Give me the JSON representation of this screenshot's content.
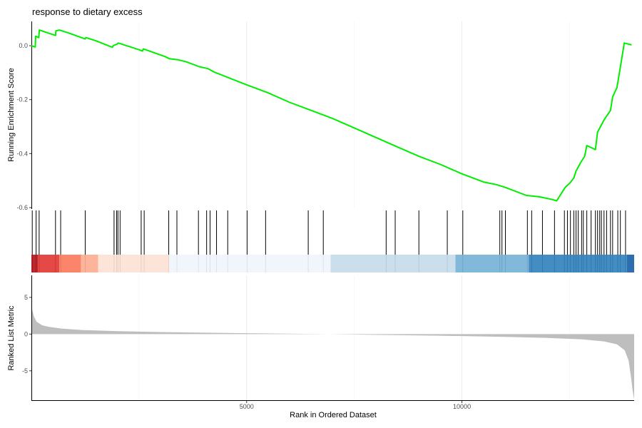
{
  "chart_data": {
    "type": "line",
    "title": "response to dietary excess",
    "xlabel": "Rank in Ordered Dataset",
    "xlim": [
      0,
      14000
    ],
    "x_ticks": [
      5000,
      10000
    ],
    "es_panel": {
      "ylabel": "Running Enrichment Score",
      "ylim": [
        -0.6,
        0.09
      ],
      "y_ticks": [
        0.0,
        -0.2,
        -0.4,
        -0.6
      ],
      "y_tick_labels": [
        "0.0",
        "-0.2",
        "-0.4",
        "-0.6"
      ],
      "line_color": "#00ee00",
      "points": [
        [
          0,
          0.0
        ],
        [
          90,
          -0.005
        ],
        [
          100,
          0.035
        ],
        [
          170,
          0.03
        ],
        [
          185,
          0.058
        ],
        [
          330,
          0.05
        ],
        [
          560,
          0.038
        ],
        [
          570,
          0.055
        ],
        [
          650,
          0.058
        ],
        [
          850,
          0.048
        ],
        [
          1250,
          0.025
        ],
        [
          1265,
          0.03
        ],
        [
          1500,
          0.018
        ],
        [
          1880,
          -0.006
        ],
        [
          1900,
          0.0
        ],
        [
          1990,
          0.006
        ],
        [
          2020,
          0.01
        ],
        [
          2500,
          -0.015
        ],
        [
          2580,
          -0.02
        ],
        [
          2600,
          -0.012
        ],
        [
          3100,
          -0.04
        ],
        [
          3200,
          -0.048
        ],
        [
          3400,
          -0.052
        ],
        [
          3600,
          -0.06
        ],
        [
          3900,
          -0.078
        ],
        [
          4100,
          -0.085
        ],
        [
          4250,
          -0.098
        ],
        [
          4600,
          -0.12
        ],
        [
          5000,
          -0.145
        ],
        [
          5500,
          -0.175
        ],
        [
          6000,
          -0.21
        ],
        [
          6500,
          -0.24
        ],
        [
          7000,
          -0.27
        ],
        [
          7500,
          -0.305
        ],
        [
          8000,
          -0.34
        ],
        [
          8500,
          -0.375
        ],
        [
          9000,
          -0.41
        ],
        [
          9500,
          -0.44
        ],
        [
          10000,
          -0.475
        ],
        [
          10500,
          -0.505
        ],
        [
          10800,
          -0.515
        ],
        [
          11000,
          -0.525
        ],
        [
          11500,
          -0.555
        ],
        [
          11800,
          -0.56
        ],
        [
          12100,
          -0.57
        ],
        [
          12200,
          -0.575
        ],
        [
          12300,
          -0.55
        ],
        [
          12400,
          -0.525
        ],
        [
          12500,
          -0.51
        ],
        [
          12600,
          -0.49
        ],
        [
          12650,
          -0.465
        ],
        [
          12750,
          -0.435
        ],
        [
          12850,
          -0.41
        ],
        [
          12900,
          -0.37
        ],
        [
          13100,
          -0.385
        ],
        [
          13150,
          -0.32
        ],
        [
          13300,
          -0.275
        ],
        [
          13450,
          -0.24
        ],
        [
          13500,
          -0.19
        ],
        [
          13600,
          -0.155
        ],
        [
          13700,
          -0.06
        ],
        [
          13770,
          0.01
        ],
        [
          13940,
          0.003
        ]
      ]
    },
    "gene_hits": [
      20,
      110,
      180,
      560,
      680,
      1250,
      1920,
      1980,
      2010,
      2060,
      2550,
      2620,
      3190,
      3380,
      3880,
      4070,
      4150,
      4300,
      4560,
      5010,
      5440,
      6430,
      6780,
      8240,
      8450,
      9000,
      9660,
      10020,
      10880,
      10930,
      11010,
      11520,
      11620,
      11870,
      12150,
      12380,
      12450,
      12520,
      12600,
      12650,
      12700,
      12780,
      12820,
      12900,
      13000,
      13100,
      13150,
      13200,
      13240,
      13300,
      13360,
      13450,
      13500,
      13620,
      13680,
      13800
    ],
    "color_bands": [
      {
        "from": 0,
        "to": 150,
        "color": "#b2171e"
      },
      {
        "from": 150,
        "to": 650,
        "color": "#e33a36"
      },
      {
        "from": 650,
        "to": 1150,
        "color": "#fb7b5d"
      },
      {
        "from": 1150,
        "to": 1550,
        "color": "#fcae93"
      },
      {
        "from": 1550,
        "to": 3200,
        "color": "#fde2d6"
      },
      {
        "from": 3200,
        "to": 6950,
        "color": "#f0f5fd"
      },
      {
        "from": 6950,
        "to": 9850,
        "color": "#c6dbea"
      },
      {
        "from": 9850,
        "to": 11550,
        "color": "#77b3d8"
      },
      {
        "from": 11550,
        "to": 13830,
        "color": "#3483be"
      },
      {
        "from": 13830,
        "to": 14000,
        "color": "#1a62a8"
      }
    ],
    "metric_panel": {
      "ylabel": "Ranked List Metric",
      "ylim": [
        -9,
        8
      ],
      "y_ticks": [
        5,
        0,
        -5
      ],
      "y_tick_labels": [
        "5",
        "0",
        "-5"
      ],
      "fill_color": "#bebebe",
      "profile": [
        [
          0,
          4.8
        ],
        [
          20,
          3.3
        ],
        [
          60,
          2.4
        ],
        [
          120,
          1.7
        ],
        [
          250,
          1.2
        ],
        [
          400,
          1.0
        ],
        [
          700,
          0.75
        ],
        [
          1200,
          0.55
        ],
        [
          2000,
          0.4
        ],
        [
          3000,
          0.28
        ],
        [
          4500,
          0.15
        ],
        [
          6000,
          0.06
        ],
        [
          6900,
          0.0
        ],
        [
          8000,
          -0.1
        ],
        [
          9500,
          -0.22
        ],
        [
          11000,
          -0.38
        ],
        [
          12000,
          -0.52
        ],
        [
          12800,
          -0.72
        ],
        [
          13300,
          -1.0
        ],
        [
          13600,
          -1.4
        ],
        [
          13780,
          -2.2
        ],
        [
          13870,
          -3.6
        ],
        [
          13930,
          -6.0
        ],
        [
          13960,
          -7.5
        ],
        [
          14000,
          -8.9
        ]
      ]
    }
  }
}
